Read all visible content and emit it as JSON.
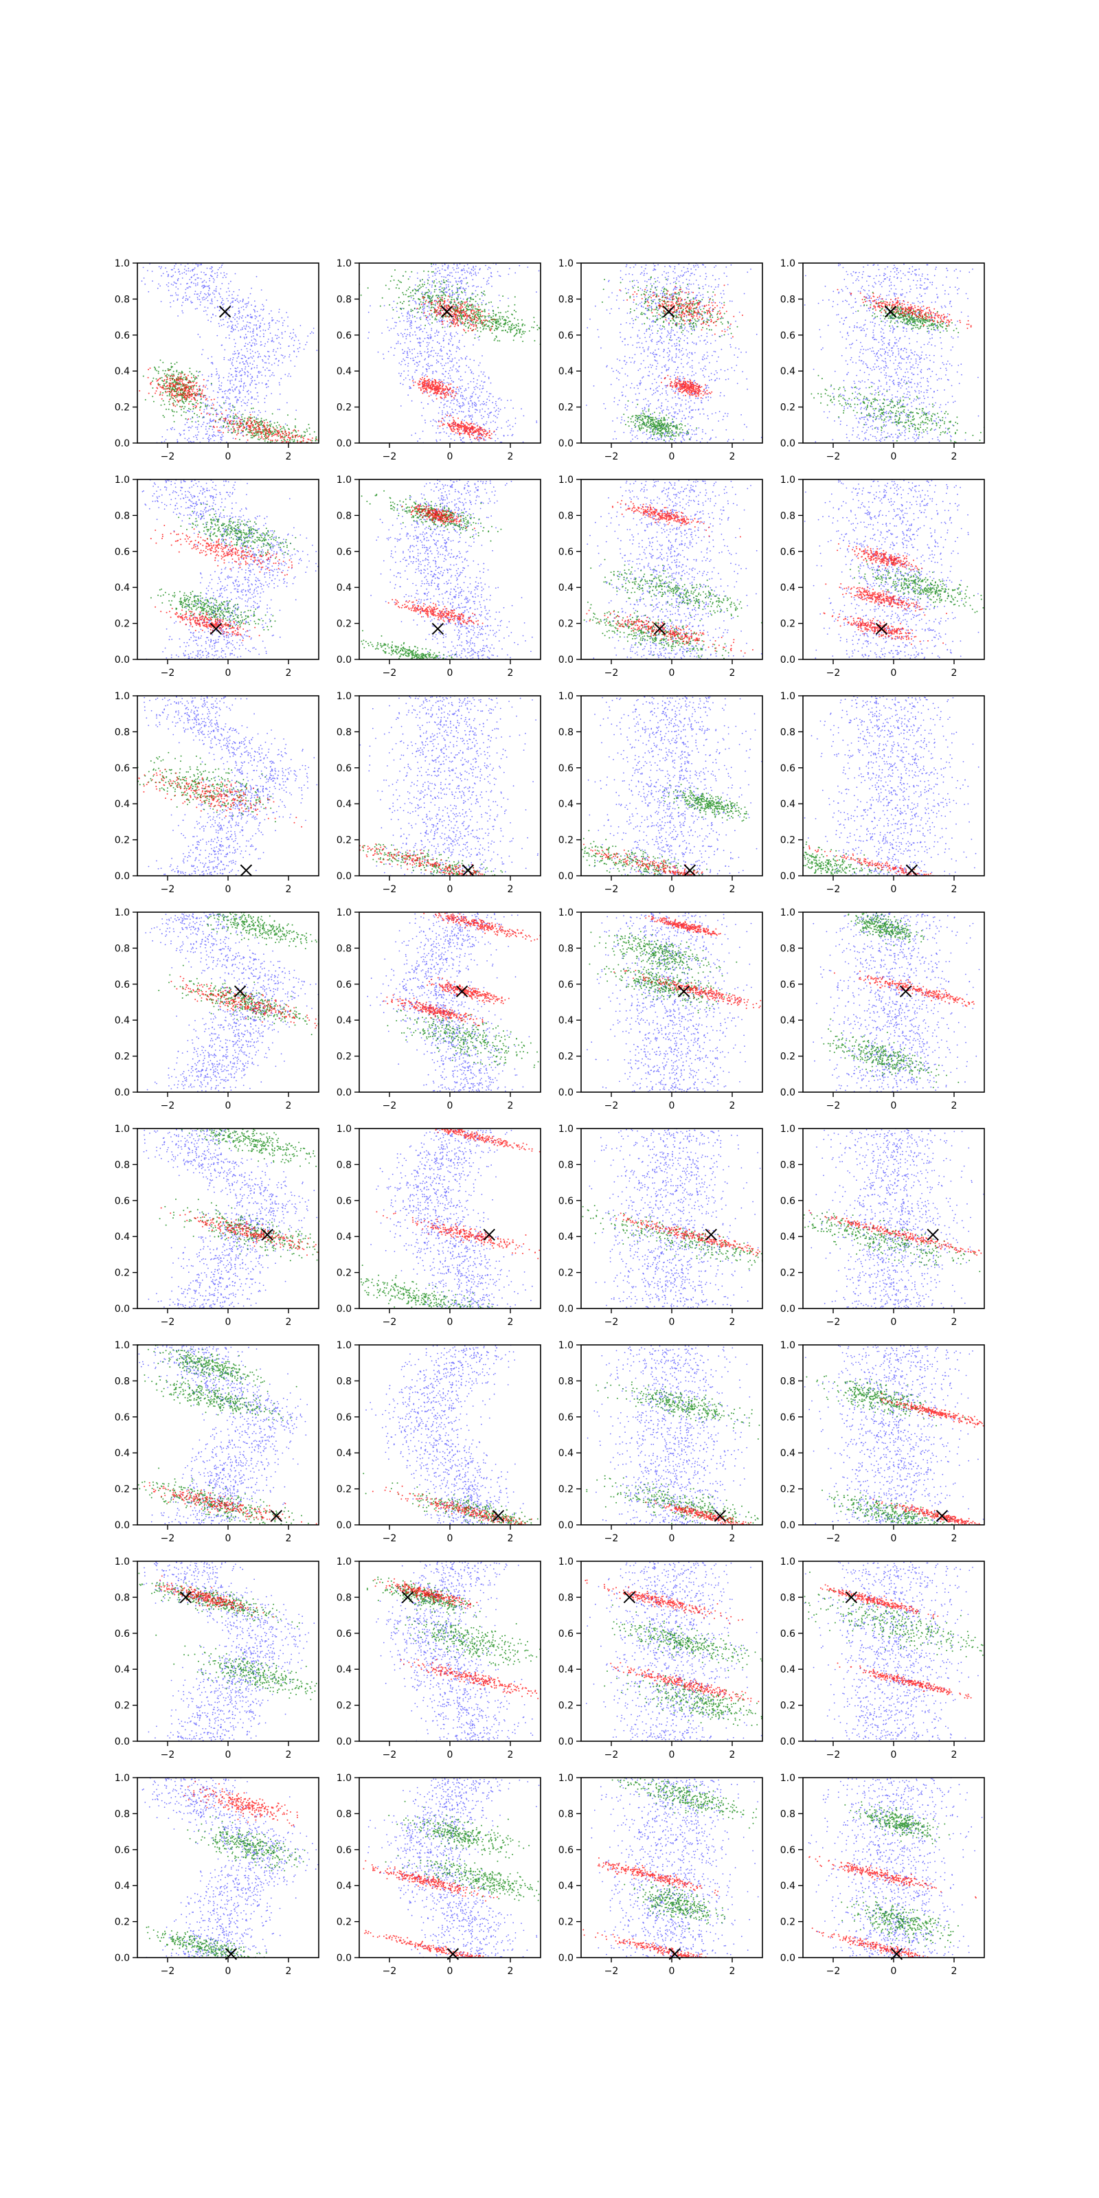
{
  "figure": {
    "rows": 8,
    "cols": 4
  },
  "colors": {
    "background": "#ffffff",
    "axes": "#000000",
    "series_blue": "#0000ff",
    "series_green": "#008000",
    "series_red": "#ff0000",
    "marker": "#000000"
  },
  "chart_data": {
    "type": "scatter",
    "grid": false,
    "xlim": [
      -3,
      3
    ],
    "ylim": [
      0,
      1
    ],
    "x_ticks": [
      -2,
      0,
      2
    ],
    "x_tick_labels": [
      "−2",
      "0",
      "2"
    ],
    "y_ticks": [
      0.0,
      0.2,
      0.4,
      0.6,
      0.8,
      1.0
    ],
    "y_tick_labels": [
      "0.0",
      "0.2",
      "0.4",
      "0.6",
      "0.8",
      "1.0"
    ],
    "series": [
      {
        "color": "blue",
        "description": "diffuse background scatter"
      },
      {
        "color": "green",
        "description": "tilted bands"
      },
      {
        "color": "red",
        "description": "narrow tilted bands"
      }
    ],
    "panel_rows": [
      {
        "row": 1,
        "x_marker": [
          -0.1,
          0.73
        ],
        "panels": [
          {
            "blue": "wave",
            "green": [
              [
                -1.6,
                0.3,
                0.4,
                0.12
              ],
              [
                1.2,
                0.07,
                0.9,
                0.08
              ]
            ],
            "red": [
              [
                -1.6,
                0.3,
                0.4,
                0.12
              ],
              [
                1.2,
                0.07,
                0.9,
                0.08
              ]
            ]
          },
          {
            "blue": "wave2",
            "green": [
              [
                -0.2,
                0.78,
                1.0,
                0.12
              ],
              [
                1.2,
                0.68,
                0.9,
                0.08
              ]
            ],
            "red": [
              [
                0.2,
                0.72,
                0.5,
                0.1
              ],
              [
                -0.5,
                0.31,
                0.3,
                0.06
              ],
              [
                0.5,
                0.08,
                0.4,
                0.05
              ]
            ]
          },
          {
            "blue": "blob",
            "green": [
              [
                0.2,
                0.74,
                0.8,
                0.12
              ],
              [
                -0.5,
                0.1,
                0.4,
                0.06
              ]
            ],
            "red": [
              [
                0.4,
                0.75,
                0.7,
                0.12
              ],
              [
                0.5,
                0.31,
                0.3,
                0.05
              ]
            ]
          },
          {
            "blue": "blob",
            "green": [
              [
                0.5,
                0.7,
                0.6,
                0.05
              ],
              [
                0.0,
                0.17,
                1.2,
                0.1
              ]
            ],
            "red": [
              [
                0.5,
                0.74,
                0.8,
                0.06
              ]
            ]
          }
        ]
      },
      {
        "row": 2,
        "x_marker": [
          -0.4,
          0.17
        ],
        "panels": [
          {
            "blue": "wave",
            "green": [
              [
                -0.5,
                0.28,
                0.8,
                0.06
              ],
              [
                0.3,
                0.7,
                0.8,
                0.08
              ]
            ],
            "red": [
              [
                0.0,
                0.6,
                1.0,
                0.08
              ],
              [
                -0.6,
                0.2,
                0.6,
                0.06
              ]
            ]
          },
          {
            "blue": "wave2",
            "green": [
              [
                -1.0,
                0.02,
                0.8,
                0.04
              ],
              [
                -0.5,
                0.8,
                0.8,
                0.06
              ]
            ],
            "red": [
              [
                -0.4,
                0.26,
                0.6,
                0.05
              ],
              [
                -0.4,
                0.8,
                0.4,
                0.05
              ]
            ]
          },
          {
            "blue": "blob",
            "green": [
              [
                -0.7,
                0.15,
                1.0,
                0.08
              ],
              [
                0.2,
                0.37,
                1.2,
                0.08
              ]
            ],
            "red": [
              [
                -0.3,
                0.16,
                1.0,
                0.06
              ],
              [
                -0.3,
                0.8,
                0.6,
                0.05
              ]
            ]
          },
          {
            "blue": "blob",
            "green": [
              [
                1.0,
                0.4,
                0.9,
                0.07
              ]
            ],
            "red": [
              [
                -0.5,
                0.17,
                0.6,
                0.05
              ],
              [
                -0.4,
                0.34,
                0.6,
                0.05
              ],
              [
                -0.3,
                0.56,
                0.5,
                0.05
              ]
            ]
          }
        ]
      },
      {
        "row": 3,
        "x_marker": [
          0.6,
          0.03
        ],
        "panels": [
          {
            "blue": "wave",
            "green": [
              [
                -0.8,
                0.5,
                1.0,
                0.12
              ]
            ],
            "red": [
              [
                -0.6,
                0.45,
                1.0,
                0.12
              ]
            ]
          },
          {
            "blue": "blob",
            "green": [
              [
                0.0,
                0.04,
                1.6,
                0.06
              ]
            ],
            "red": [
              [
                -0.4,
                0.05,
                1.4,
                0.06
              ]
            ]
          },
          {
            "blue": "blob",
            "green": [
              [
                -1.0,
                0.06,
                1.4,
                0.08
              ],
              [
                1.2,
                0.4,
                0.6,
                0.05
              ]
            ],
            "red": [
              [
                0.0,
                0.03,
                1.4,
                0.05
              ]
            ]
          },
          {
            "blue": "blob",
            "green": [
              [
                -2.3,
                0.06,
                0.9,
                0.08
              ]
            ],
            "red": [
              [
                0.5,
                0.02,
                1.8,
                0.03
              ]
            ]
          }
        ]
      },
      {
        "row": 4,
        "x_marker": [
          0.4,
          0.56
        ],
        "panels": [
          {
            "blue": "wave",
            "green": [
              [
                1.0,
                0.92,
                0.9,
                0.07
              ],
              [
                0.5,
                0.5,
                1.0,
                0.07
              ]
            ],
            "red": [
              [
                0.5,
                0.5,
                1.0,
                0.08
              ]
            ]
          },
          {
            "blue": "wave2",
            "green": [
              [
                0.5,
                0.3,
                1.0,
                0.1
              ]
            ],
            "red": [
              [
                1.0,
                0.93,
                0.8,
                0.04
              ],
              [
                0.5,
                0.56,
                0.6,
                0.04
              ],
              [
                -0.4,
                0.45,
                0.7,
                0.04
              ]
            ]
          },
          {
            "blue": "blob",
            "green": [
              [
                -0.5,
                0.78,
                0.8,
                0.08
              ],
              [
                -0.3,
                0.6,
                0.8,
                0.08
              ]
            ],
            "red": [
              [
                0.9,
                0.56,
                1.0,
                0.04
              ],
              [
                0.5,
                0.92,
                0.5,
                0.03
              ]
            ]
          },
          {
            "blue": "blob",
            "green": [
              [
                -0.5,
                0.2,
                0.8,
                0.08
              ],
              [
                -0.3,
                0.92,
                0.5,
                0.06
              ]
            ],
            "red": [
              [
                0.9,
                0.56,
                1.0,
                0.04
              ]
            ]
          }
        ]
      },
      {
        "row": 5,
        "x_marker": [
          1.3,
          0.41
        ],
        "panels": [
          {
            "blue": "wave",
            "green": [
              [
                0.8,
                0.93,
                1.0,
                0.07
              ],
              [
                0.8,
                0.42,
                1.2,
                0.08
              ]
            ],
            "red": [
              [
                0.8,
                0.42,
                1.0,
                0.06
              ]
            ]
          },
          {
            "blue": "wave2",
            "green": [
              [
                -1.0,
                0.06,
                1.2,
                0.07
              ]
            ],
            "red": [
              [
                0.6,
                0.41,
                1.0,
                0.05
              ],
              [
                0.5,
                0.97,
                1.0,
                0.03
              ]
            ]
          },
          {
            "blue": "blob",
            "green": [
              [
                0.5,
                0.38,
                2.0,
                0.07
              ]
            ],
            "red": [
              [
                0.8,
                0.4,
                1.2,
                0.04
              ]
            ]
          },
          {
            "blue": "blob",
            "green": [
              [
                -0.6,
                0.39,
                1.5,
                0.08
              ]
            ],
            "red": [
              [
                0.5,
                0.4,
                1.5,
                0.03
              ]
            ]
          }
        ]
      },
      {
        "row": 6,
        "x_marker": [
          1.6,
          0.05
        ],
        "panels": [
          {
            "blue": "wave",
            "green": [
              [
                -0.6,
                0.88,
                0.8,
                0.06
              ],
              [
                -0.4,
                0.7,
                1.0,
                0.06
              ],
              [
                -0.4,
                0.12,
                1.2,
                0.08
              ]
            ],
            "red": [
              [
                -0.4,
                0.12,
                1.2,
                0.06
              ]
            ]
          },
          {
            "blue": "wave2",
            "green": [
              [
                1.2,
                0.06,
                1.2,
                0.06
              ]
            ],
            "red": [
              [
                0.8,
                0.07,
                1.2,
                0.04
              ]
            ]
          },
          {
            "blue": "blob",
            "green": [
              [
                0.3,
                0.67,
                1.0,
                0.06
              ],
              [
                0.5,
                0.1,
                1.2,
                0.08
              ]
            ],
            "red": [
              [
                1.2,
                0.05,
                0.8,
                0.03
              ]
            ]
          },
          {
            "blue": "blob",
            "green": [
              [
                -0.5,
                0.7,
                0.8,
                0.07
              ],
              [
                0.0,
                0.06,
                1.0,
                0.06
              ]
            ],
            "red": [
              [
                1.5,
                0.05,
                0.8,
                0.03
              ],
              [
                1.5,
                0.62,
                0.8,
                0.03
              ]
            ]
          }
        ]
      },
      {
        "row": 7,
        "x_marker": [
          -1.4,
          0.8
        ],
        "panels": [
          {
            "blue": "wave",
            "green": [
              [
                -0.5,
                0.78,
                1.0,
                0.06
              ],
              [
                1.0,
                0.37,
                1.0,
                0.08
              ]
            ],
            "red": [
              [
                -0.8,
                0.8,
                0.7,
                0.05
              ]
            ]
          },
          {
            "blue": "wave2",
            "green": [
              [
                -0.8,
                0.8,
                0.7,
                0.06
              ],
              [
                0.8,
                0.55,
                1.0,
                0.08
              ]
            ],
            "red": [
              [
                0.8,
                0.35,
                1.0,
                0.05
              ],
              [
                -0.8,
                0.82,
                0.7,
                0.04
              ]
            ]
          },
          {
            "blue": "blob",
            "green": [
              [
                0.9,
                0.22,
                1.0,
                0.08
              ],
              [
                0.4,
                0.55,
                1.0,
                0.07
              ]
            ],
            "red": [
              [
                -0.4,
                0.78,
                1.0,
                0.04
              ],
              [
                0.4,
                0.32,
                1.0,
                0.04
              ]
            ]
          },
          {
            "blue": "blob",
            "green": [
              [
                0.0,
                0.65,
                1.4,
                0.1
              ]
            ],
            "red": [
              [
                -0.6,
                0.78,
                0.8,
                0.03
              ],
              [
                0.5,
                0.33,
                0.8,
                0.03
              ]
            ]
          }
        ]
      },
      {
        "row": 8,
        "x_marker": [
          0.1,
          0.02
        ],
        "panels": [
          {
            "blue": "wave",
            "green": [
              [
                -0.5,
                0.05,
                1.0,
                0.05
              ],
              [
                0.6,
                0.62,
                0.8,
                0.08
              ]
            ],
            "red": [
              [
                0.6,
                0.85,
                0.8,
                0.08
              ]
            ]
          },
          {
            "blue": "wave2",
            "green": [
              [
                1.0,
                0.44,
                1.0,
                0.07
              ],
              [
                0.4,
                0.68,
                0.8,
                0.07
              ]
            ],
            "red": [
              [
                -0.9,
                0.43,
                0.9,
                0.04
              ],
              [
                0.0,
                0.03,
                1.2,
                0.03
              ]
            ]
          },
          {
            "blue": "blob",
            "green": [
              [
                0.3,
                0.9,
                1.0,
                0.07
              ],
              [
                0.2,
                0.3,
                0.6,
                0.08
              ]
            ],
            "red": [
              [
                -0.6,
                0.45,
                0.9,
                0.04
              ],
              [
                0.0,
                0.03,
                1.2,
                0.03
              ]
            ]
          },
          {
            "blue": "blob",
            "green": [
              [
                0.2,
                0.2,
                0.8,
                0.08
              ],
              [
                0.2,
                0.75,
                0.6,
                0.06
              ]
            ],
            "red": [
              [
                -0.5,
                0.46,
                0.9,
                0.04
              ],
              [
                0.0,
                0.04,
                1.2,
                0.03
              ]
            ]
          }
        ]
      }
    ]
  }
}
